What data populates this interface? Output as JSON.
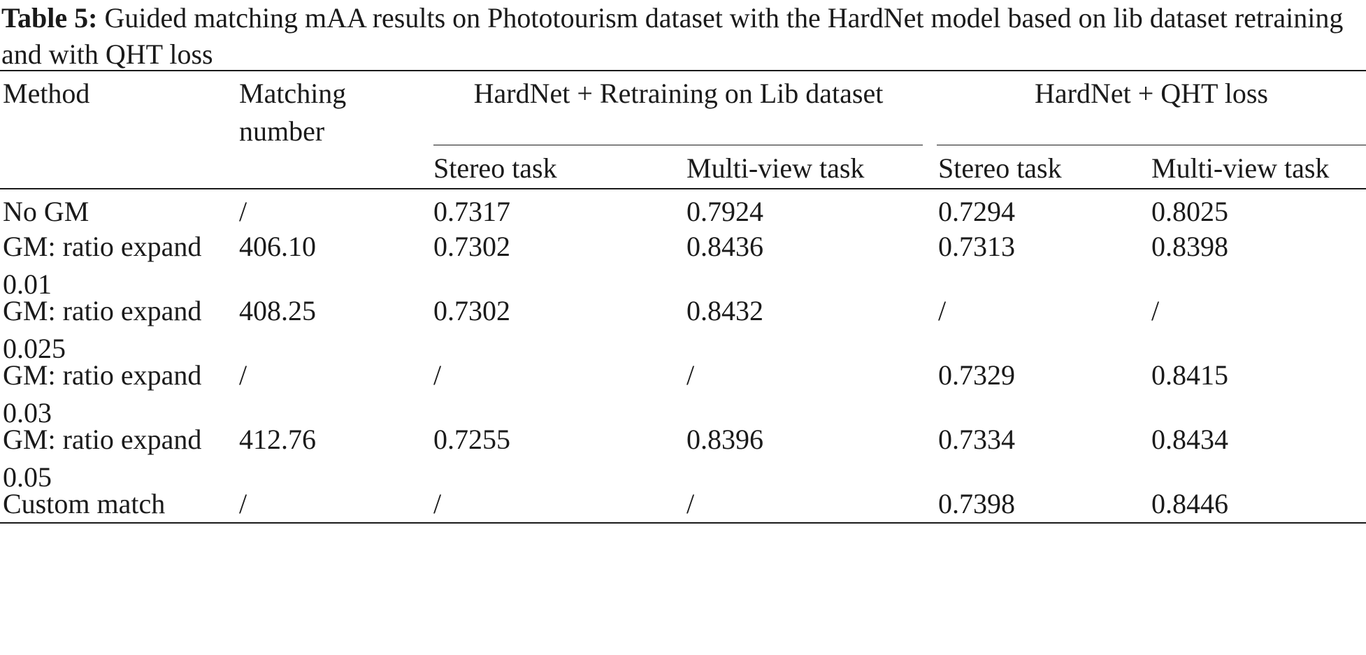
{
  "caption": {
    "label": "Table 5:",
    "text": "Guided matching mAA results on Phototourism dataset with the HardNet model based on lib dataset retraining and with QHT loss"
  },
  "table": {
    "headers": {
      "method": "Method",
      "matching_number": "Matching number",
      "group_1": "HardNet + Retraining on Lib dataset",
      "group_2": "HardNet + QHT loss",
      "stereo": "Stereo task",
      "multiview": "Multi-view task"
    },
    "rows": [
      {
        "method": "No GM",
        "matching_number": "/",
        "retrain_stereo": "0.7317",
        "retrain_multiview": "0.7924",
        "qht_stereo": "0.7294",
        "qht_multiview": "0.8025"
      },
      {
        "method": "GM: ratio expand 0.01",
        "matching_number": "406.10",
        "retrain_stereo": "0.7302",
        "retrain_multiview": "0.8436",
        "qht_stereo": "0.7313",
        "qht_multiview": "0.8398"
      },
      {
        "method": "GM: ratio expand 0.025",
        "matching_number": "408.25",
        "retrain_stereo": "0.7302",
        "retrain_multiview": "0.8432",
        "qht_stereo": "/",
        "qht_multiview": "/"
      },
      {
        "method": "GM: ratio expand 0.03",
        "matching_number": "/",
        "retrain_stereo": "/",
        "retrain_multiview": "/",
        "qht_stereo": "0.7329",
        "qht_multiview": "0.8415"
      },
      {
        "method": "GM: ratio expand 0.05",
        "matching_number": "412.76",
        "retrain_stereo": "0.7255",
        "retrain_multiview": "0.8396",
        "qht_stereo": "0.7334",
        "qht_multiview": "0.8434"
      },
      {
        "method": "Custom match",
        "matching_number": "/",
        "retrain_stereo": "/",
        "retrain_multiview": "/",
        "qht_stereo": "0.7398",
        "qht_multiview": "0.8446"
      }
    ]
  }
}
